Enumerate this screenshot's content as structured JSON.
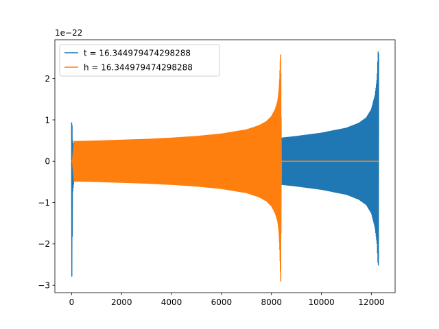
{
  "chart_data": {
    "type": "line",
    "title": "",
    "xlabel": "",
    "ylabel": "",
    "xlim": [
      -670,
      12950
    ],
    "ylim": [
      -3.18,
      2.94
    ],
    "y_multiplier_label": "1e−22",
    "x_ticks": [
      0,
      2000,
      4000,
      6000,
      8000,
      10000,
      12000
    ],
    "x_tick_labels": [
      "0",
      "2000",
      "4000",
      "6000",
      "8000",
      "10000",
      "12000"
    ],
    "y_ticks": [
      -3,
      -2,
      -1,
      0,
      1,
      2
    ],
    "y_tick_labels": [
      "−3",
      "−2",
      "−1",
      "0",
      "1",
      "2"
    ],
    "grid": false,
    "legend_position": "upper-left",
    "series": [
      {
        "name": "t = 16.344979474298288",
        "color": "#1f77b4",
        "x_range": [
          0,
          12290
        ],
        "envelope": {
          "x": [
            0,
            15,
            40,
            100,
            150,
            300,
            1000,
            2000,
            4000,
            6000,
            8000,
            8400,
            9000,
            10000,
            11000,
            11500,
            11800,
            12000,
            12150,
            12230,
            12270,
            12290
          ],
          "upper": [
            0.94,
            0.92,
            0.4,
            0.45,
            0.46,
            0.46,
            0.47,
            0.48,
            0.5,
            0.52,
            0.55,
            0.56,
            0.6,
            0.68,
            0.8,
            0.92,
            1.05,
            1.25,
            1.6,
            2.0,
            2.65,
            2.6
          ],
          "lower": [
            -2.9,
            -2.7,
            -0.75,
            -0.45,
            -0.46,
            -0.46,
            -0.47,
            -0.48,
            -0.5,
            -0.52,
            -0.55,
            -0.56,
            -0.6,
            -0.68,
            -0.8,
            -0.92,
            -1.05,
            -1.25,
            -1.6,
            -2.0,
            -2.53,
            -2.5
          ]
        }
      },
      {
        "name": "h = 16.344979474298288",
        "color": "#ff7f0e",
        "x_range": [
          0,
          12290
        ],
        "envelope": {
          "x": [
            0,
            30,
            100,
            300,
            1000,
            2000,
            3000,
            4000,
            5000,
            6000,
            7000,
            7500,
            7800,
            8000,
            8150,
            8250,
            8300,
            8330,
            8350,
            8370,
            8400
          ],
          "upper": [
            0.0,
            0.0,
            0.48,
            0.48,
            0.49,
            0.51,
            0.53,
            0.56,
            0.6,
            0.66,
            0.76,
            0.86,
            0.96,
            1.08,
            1.25,
            1.45,
            1.7,
            2.0,
            2.4,
            2.65,
            0.0
          ],
          "lower": [
            0.0,
            0.0,
            -0.48,
            -0.48,
            -0.49,
            -0.51,
            -0.53,
            -0.56,
            -0.6,
            -0.66,
            -0.76,
            -0.86,
            -0.96,
            -1.08,
            -1.25,
            -1.45,
            -1.7,
            -2.05,
            -2.5,
            -2.9,
            0.0
          ]
        },
        "flat_after": {
          "x": [
            8400,
            12290
          ],
          "value": 0.0
        }
      }
    ]
  }
}
